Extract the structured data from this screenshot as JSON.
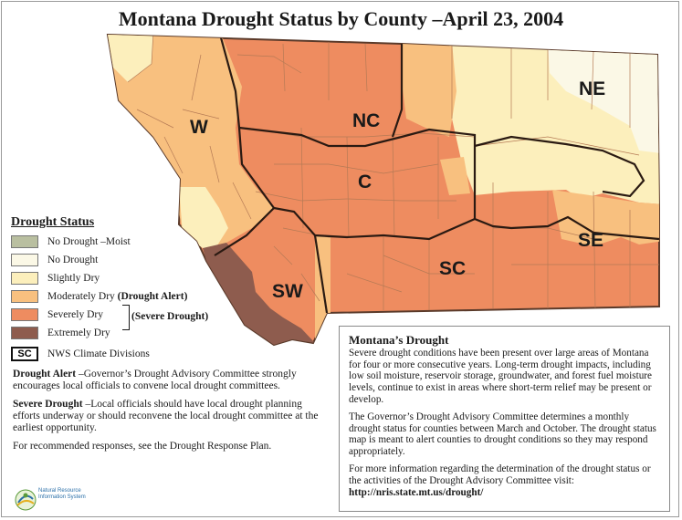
{
  "title": "Montana Drought Status by County –April 23, 2004",
  "colors": {
    "no_drought_moist": "#b9bfa0",
    "no_drought": "#fbf8e6",
    "slightly_dry": "#fcefbc",
    "moderately_dry": "#f8c07f",
    "severely_dry": "#ee8c60",
    "extremely_dry": "#8e5c4e"
  },
  "regions": [
    {
      "code": "W",
      "status": "moderately_dry"
    },
    {
      "code": "NC",
      "status": "severely_dry"
    },
    {
      "code": "NE",
      "status": "slightly_dry"
    },
    {
      "code": "C",
      "status": "severely_dry"
    },
    {
      "code": "SW",
      "status": "severely_dry"
    },
    {
      "code": "SC",
      "status": "severely_dry"
    },
    {
      "code": "SE",
      "status": "severely_dry"
    }
  ],
  "legend": {
    "title": "Drought Status",
    "items": [
      {
        "label": "No Drought –Moist",
        "note": ""
      },
      {
        "label": "No Drought",
        "note": ""
      },
      {
        "label": "Slightly Dry",
        "note": ""
      },
      {
        "label": "Moderately Dry ",
        "note": "(Drought Alert)"
      },
      {
        "label": "Severely Dry",
        "note": ""
      },
      {
        "label": "Extremely Dry",
        "note": ""
      }
    ],
    "severe_bracket": "(Severe Drought)",
    "sc_symbol": "SC",
    "sc_label": "NWS Climate Divisions"
  },
  "notes": {
    "alert_term": "Drought Alert",
    "alert_text": " –Governor’s Drought Advisory Committee strongly encourages local officials to convene local drought committees.",
    "severe_term": "Severe Drought",
    "severe_text": " –Local officials should have local drought planning efforts underway or should reconvene the local drought committee at the earliest opportunity.",
    "recommend": "For recommended responses, see the Drought Response Plan."
  },
  "info": {
    "heading": "Montana’s Drought",
    "p1": "Severe drought conditions have been present over large areas of Montana for four or more consecutive years. Long-term drought impacts, including low soil moisture, reservoir storage, groundwater, and forest fuel moisture levels, continue to exist in areas where short-term relief may be present or develop.",
    "p2": "The Governor’s Drought Advisory Committee determines a monthly drought status for counties between March and October. The drought status map is meant to alert counties to drought conditions so they may respond appropriately.",
    "p3": "For more information regarding the determination of the drought status or the activities of the Drought Advisory Committee visit:",
    "url": "http://nris.state.mt.us/drought/"
  },
  "logo": {
    "name": "Natural Resource Information System"
  }
}
